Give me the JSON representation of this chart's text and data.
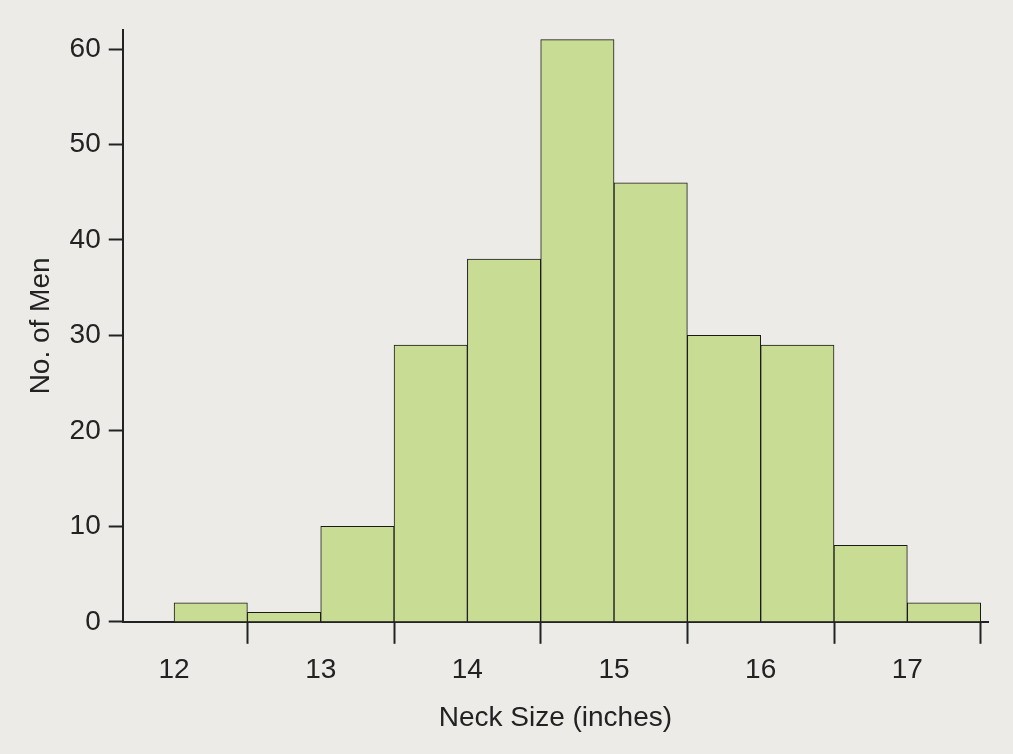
{
  "chart_data": {
    "type": "histogram",
    "xlabel": "Neck Size (inches)",
    "ylabel": "No. of Men",
    "bins": [
      12,
      12.5,
      13,
      13.5,
      14,
      14.5,
      15,
      15.5,
      16,
      16.5,
      17,
      17.5
    ],
    "values": [
      2,
      1,
      10,
      29,
      38,
      61,
      46,
      30,
      29,
      8,
      2
    ],
    "color": "#c8dc94",
    "xlim": [
      11.65,
      17.55
    ],
    "xticks": [
      12,
      13,
      14,
      15,
      16,
      17
    ],
    "ylim": [
      0,
      62
    ],
    "yticks": [
      0,
      10,
      20,
      30,
      40,
      50,
      60
    ],
    "grid": false,
    "legend": false
  }
}
